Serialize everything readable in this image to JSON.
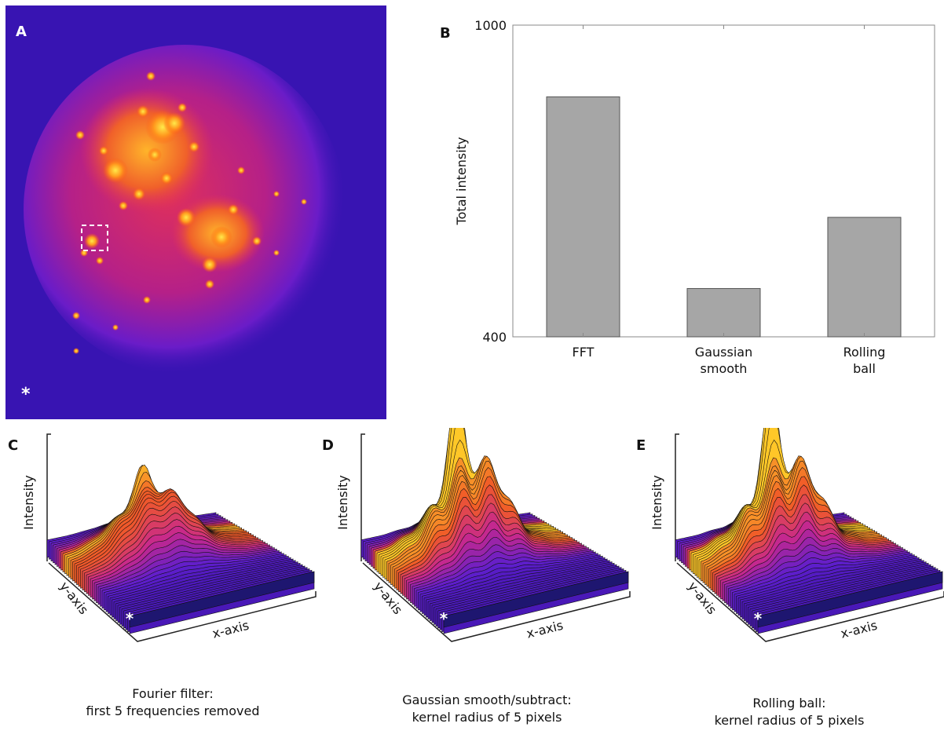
{
  "panels": {
    "a": {
      "label": "A",
      "marker": "*"
    },
    "b": {
      "label": "B"
    },
    "c": {
      "label": "C",
      "marker": "*",
      "ylabel": "Intensity",
      "yaxis": "y-axis",
      "xaxis": "x-axis",
      "caption_line1": "Fourier filter:",
      "caption_line2": "first 5 frequencies removed"
    },
    "d": {
      "label": "D",
      "marker": "*",
      "ylabel": "Intensity",
      "yaxis": "y-axis",
      "xaxis": "x-axis",
      "caption_line1": "Gaussian smooth/subtract:",
      "caption_line2": "kernel radius of 5 pixels"
    },
    "e": {
      "label": "E",
      "marker": "*",
      "ylabel": "Intensity",
      "yaxis": "y-axis",
      "xaxis": "x-axis",
      "caption_line1": "Rolling ball:",
      "caption_line2": "kernel radius of 5 pixels"
    }
  },
  "chart_data": {
    "type": "bar",
    "categories": [
      [
        "FFT"
      ],
      [
        "Gaussian",
        "smooth"
      ],
      [
        "Rolling",
        "ball"
      ]
    ],
    "values": [
      862,
      493,
      630
    ],
    "ylabel": "Total intensity",
    "ylim": [
      400,
      1000
    ],
    "yticks": [
      400,
      1000
    ],
    "bar_color": "#a6a6a6"
  },
  "colors": {
    "heatmap_low": "#3a14b4",
    "heatmap_mid": "#d8286e",
    "heatmap_high": "#ffd21e"
  }
}
